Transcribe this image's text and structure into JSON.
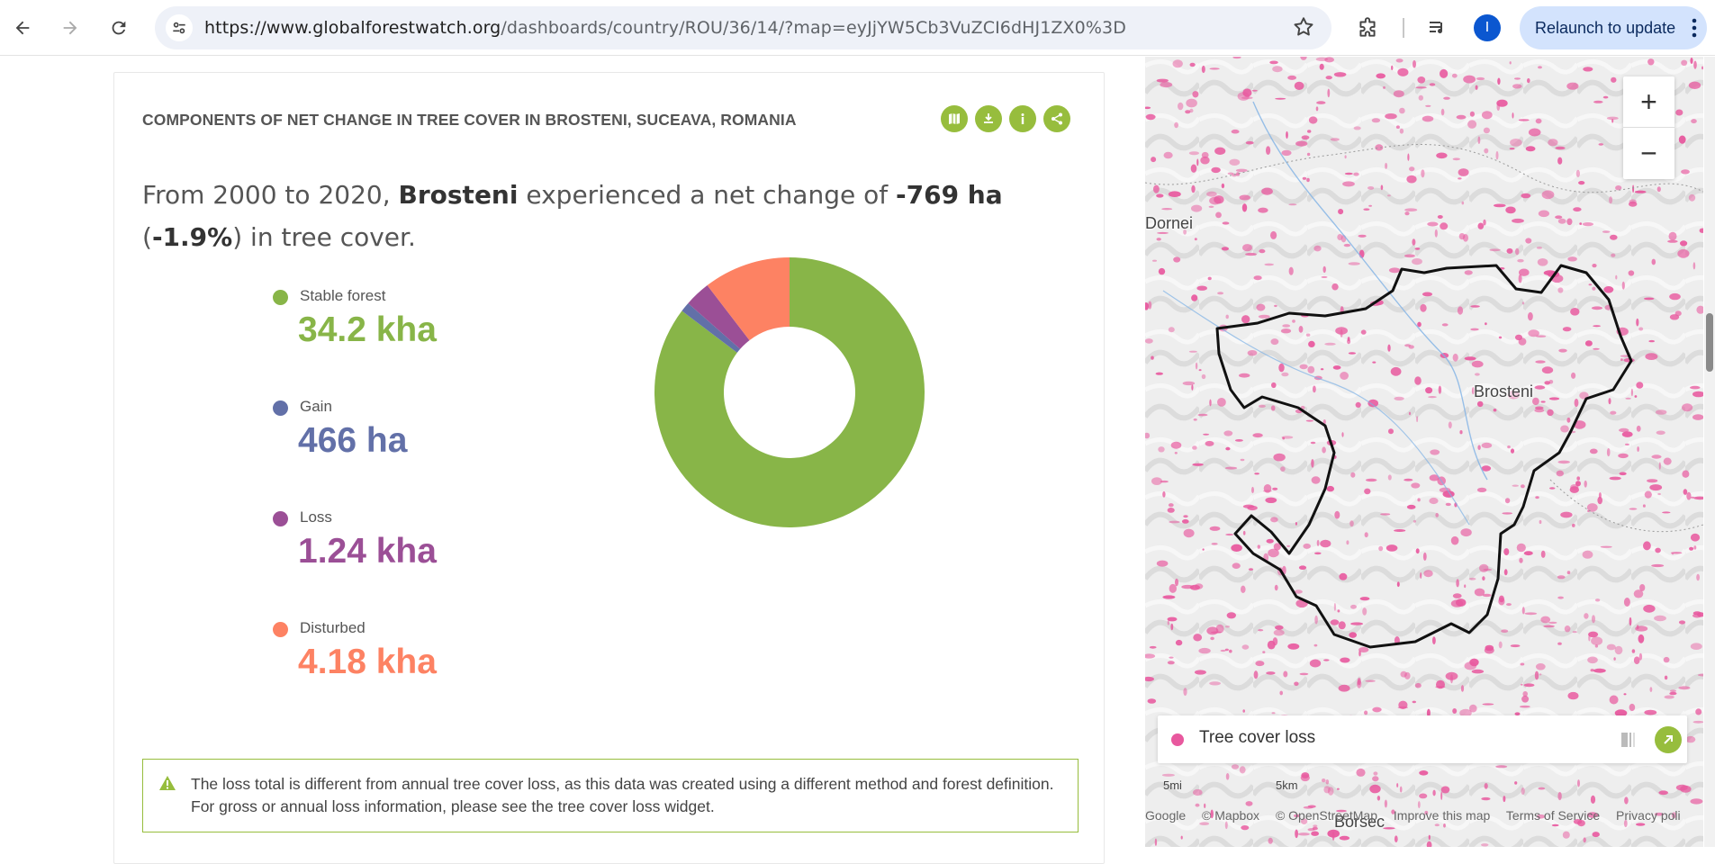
{
  "browser": {
    "url_host": "https://www.globalforestwatch.org",
    "url_path": "/dashboards/country/ROU/36/14/?map=eyJjYW5Cb3VuZCI6dHJ1ZX0%3D",
    "relaunch_label": "Relaunch to update",
    "profile_initial": "I",
    "icons": [
      "back-icon",
      "forward-icon",
      "reload-icon",
      "site-info-icon",
      "bookmark-star-icon",
      "extensions-icon",
      "media-control-icon",
      "menu-dots-icon"
    ]
  },
  "widget": {
    "title": "COMPONENTS OF NET CHANGE IN TREE COVER IN BROSTENI, SUCEAVA, ROMANIA",
    "sentence": {
      "part1": "From 2000 to 2020, ",
      "location": "Brosteni",
      "part2": " experienced a net change of ",
      "net_change": "-769 ha",
      "part3": " (",
      "percent": "-1.9%",
      "part4": ") in tree cover."
    },
    "actions": [
      "map-icon",
      "download-icon",
      "info-icon",
      "share-icon"
    ],
    "legend": [
      {
        "label": "Stable forest",
        "value": "34.2 kha",
        "color": "#88b548"
      },
      {
        "label": "Gain",
        "value": "466 ha",
        "color": "#6270a8"
      },
      {
        "label": "Loss",
        "value": "1.24 kha",
        "color": "#9b4f96"
      },
      {
        "label": "Disturbed",
        "value": "4.18 kha",
        "color": "#fd8263"
      }
    ],
    "notice": "The loss total is different from annual tree cover loss, as this data was created using a different method and forest definition. For gross or annual loss information, please see the tree cover loss widget."
  },
  "chart_data": {
    "type": "pie",
    "categories": [
      "Stable forest",
      "Gain",
      "Loss",
      "Disturbed"
    ],
    "values": [
      34200,
      466,
      1240,
      4180
    ],
    "unit": "ha",
    "colors": [
      "#88b548",
      "#6270a8",
      "#9b4f96",
      "#fd8263"
    ]
  },
  "map": {
    "legend_label": "Tree cover loss",
    "legend_color": "#e8589e",
    "places": [
      "Dornei",
      "Brosteni",
      "Borsec"
    ],
    "attribution": [
      "Google",
      "© Mapbox",
      "© OpenStreetMap",
      "Improve this map",
      "Terms of Service",
      "Privacy poli"
    ],
    "scale": [
      "5mi",
      "5km"
    ],
    "zoom_in": "+",
    "zoom_out": "−"
  }
}
